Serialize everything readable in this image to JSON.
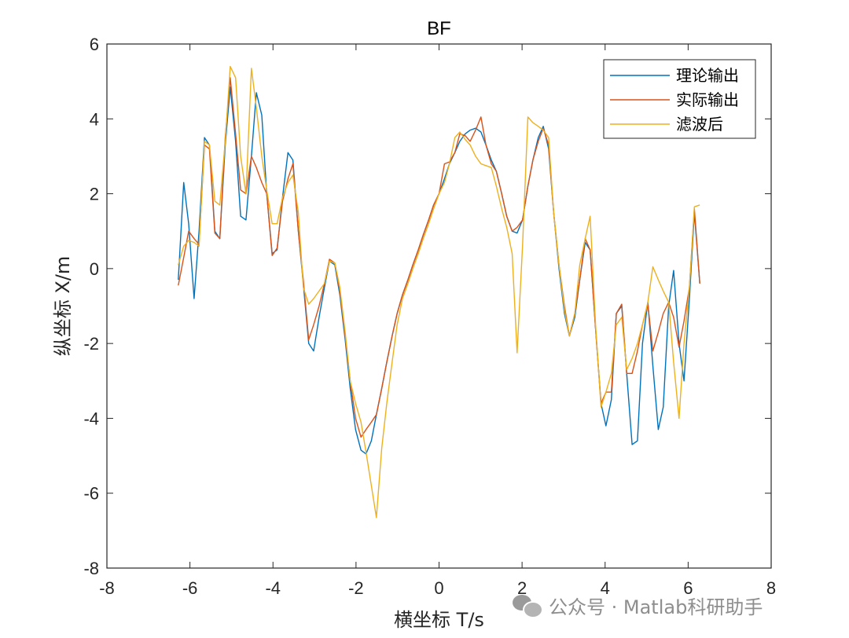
{
  "chart_data": {
    "type": "line",
    "title": "BF",
    "xlabel": "横坐标 T/s",
    "ylabel": "纵坐标 X/m",
    "xlim": [
      -8,
      8
    ],
    "ylim": [
      -8,
      6
    ],
    "xticks": [
      -8,
      -6,
      -4,
      -2,
      0,
      2,
      4,
      6,
      8
    ],
    "yticks": [
      -8,
      -6,
      -4,
      -2,
      0,
      2,
      4,
      6
    ],
    "grid": false,
    "legend_position": "top-right",
    "series": [
      {
        "name": "理论输出",
        "color": "#0072BD",
        "x": [
          -6.28,
          -6.15,
          -6.03,
          -5.9,
          -5.78,
          -5.65,
          -5.53,
          -5.4,
          -5.28,
          -5.15,
          -5.03,
          -4.9,
          -4.78,
          -4.65,
          -4.52,
          -4.4,
          -4.27,
          -4.15,
          -4.02,
          -3.9,
          -3.77,
          -3.64,
          -3.52,
          -3.39,
          -3.27,
          -3.14,
          -3.02,
          -2.89,
          -2.76,
          -2.64,
          -2.51,
          -2.39,
          -2.26,
          -2.14,
          -2.01,
          -1.88,
          -1.76,
          -1.63,
          -1.51,
          -1.38,
          -1.26,
          -1.13,
          -1.01,
          -0.88,
          -0.75,
          -0.63,
          -0.5,
          -0.38,
          -0.25,
          -0.13,
          0.0,
          0.13,
          0.25,
          0.38,
          0.5,
          0.63,
          0.75,
          0.88,
          1.01,
          1.13,
          1.26,
          1.38,
          1.51,
          1.63,
          1.76,
          1.88,
          2.01,
          2.14,
          2.26,
          2.39,
          2.51,
          2.64,
          2.76,
          2.89,
          3.02,
          3.14,
          3.27,
          3.39,
          3.52,
          3.64,
          3.77,
          3.9,
          4.02,
          4.15,
          4.27,
          4.4,
          4.52,
          4.65,
          4.78,
          4.9,
          5.03,
          5.15,
          5.28,
          5.4,
          5.53,
          5.65,
          5.78,
          5.9,
          6.03,
          6.15,
          6.28
        ],
        "y": [
          -0.3,
          2.3,
          1.2,
          -0.8,
          1.0,
          3.5,
          3.3,
          1.0,
          0.8,
          3.3,
          4.85,
          3.4,
          1.4,
          1.3,
          3.0,
          4.7,
          4.1,
          2.0,
          0.4,
          0.5,
          1.9,
          3.1,
          2.9,
          1.0,
          -0.4,
          -2.0,
          -2.2,
          -1.3,
          -0.5,
          0.2,
          0.1,
          -0.7,
          -1.9,
          -3.2,
          -4.3,
          -4.85,
          -4.95,
          -4.6,
          -3.9,
          -3.2,
          -2.5,
          -1.8,
          -1.2,
          -0.7,
          -0.3,
          0.1,
          0.5,
          0.9,
          1.3,
          1.7,
          2.0,
          2.4,
          2.8,
          3.1,
          3.4,
          3.6,
          3.7,
          3.75,
          3.65,
          3.3,
          2.9,
          2.6,
          2.0,
          1.4,
          1.0,
          0.95,
          1.3,
          2.2,
          2.9,
          3.5,
          3.8,
          3.2,
          1.5,
          0.0,
          -1.2,
          -1.8,
          -1.3,
          -0.3,
          0.7,
          0.5,
          -1.6,
          -3.6,
          -4.2,
          -3.5,
          -1.2,
          -1.0,
          -2.8,
          -4.7,
          -4.6,
          -2.0,
          -0.9,
          -2.6,
          -4.3,
          -3.7,
          -1.0,
          -0.05,
          -2.0,
          -3.0,
          -0.8,
          1.5,
          -0.4
        ]
      },
      {
        "name": "实际输出",
        "color": "#D95319",
        "x": [
          -6.28,
          -6.15,
          -6.03,
          -5.9,
          -5.78,
          -5.65,
          -5.53,
          -5.4,
          -5.28,
          -5.15,
          -5.03,
          -4.9,
          -4.78,
          -4.65,
          -4.52,
          -4.4,
          -4.27,
          -4.15,
          -4.02,
          -3.9,
          -3.77,
          -3.64,
          -3.52,
          -3.39,
          -3.27,
          -3.14,
          -3.02,
          -2.89,
          -2.76,
          -2.64,
          -2.51,
          -2.39,
          -2.26,
          -2.14,
          -2.01,
          -1.88,
          -1.76,
          -1.63,
          -1.51,
          -1.38,
          -1.26,
          -1.13,
          -1.01,
          -0.88,
          -0.75,
          -0.63,
          -0.5,
          -0.38,
          -0.25,
          -0.13,
          0.0,
          0.13,
          0.25,
          0.38,
          0.5,
          0.63,
          0.75,
          0.88,
          1.01,
          1.13,
          1.26,
          1.38,
          1.51,
          1.63,
          1.76,
          1.88,
          2.01,
          2.14,
          2.26,
          2.39,
          2.51,
          2.64,
          2.76,
          2.89,
          3.02,
          3.14,
          3.27,
          3.39,
          3.52,
          3.64,
          3.77,
          3.9,
          4.02,
          4.15,
          4.27,
          4.4,
          4.52,
          4.65,
          4.78,
          4.9,
          5.03,
          5.15,
          5.28,
          5.4,
          5.53,
          5.65,
          5.78,
          5.9,
          6.03,
          6.15,
          6.28
        ],
        "y": [
          -0.45,
          0.3,
          1.0,
          0.8,
          0.65,
          3.3,
          3.2,
          0.95,
          0.8,
          3.5,
          5.1,
          3.6,
          2.1,
          2.0,
          3.0,
          2.7,
          2.3,
          2.0,
          0.35,
          0.55,
          1.8,
          2.4,
          2.8,
          1.0,
          -0.3,
          -1.9,
          -1.5,
          -1.0,
          -0.4,
          0.25,
          0.15,
          -0.6,
          -1.8,
          -3.0,
          -4.0,
          -4.5,
          -4.3,
          -4.1,
          -3.9,
          -3.2,
          -2.5,
          -1.8,
          -1.2,
          -0.7,
          -0.3,
          0.1,
          0.5,
          0.9,
          1.3,
          1.7,
          2.0,
          2.8,
          2.85,
          3.1,
          3.6,
          3.55,
          3.4,
          3.7,
          4.05,
          3.3,
          2.8,
          2.6,
          2.0,
          1.4,
          1.0,
          1.1,
          1.3,
          2.2,
          2.9,
          3.4,
          3.75,
          3.3,
          1.5,
          0.1,
          -1.0,
          -1.8,
          -1.2,
          -0.3,
          0.8,
          0.5,
          -1.6,
          -3.6,
          -3.3,
          -3.3,
          -1.2,
          -0.95,
          -2.8,
          -2.8,
          -2.2,
          -1.5,
          -0.95,
          -2.2,
          -1.7,
          -1.2,
          -0.9,
          -1.3,
          -2.1,
          -1.4,
          -0.5,
          1.6,
          -0.4
        ]
      },
      {
        "name": "滤波后",
        "color": "#EDB120",
        "x": [
          -6.28,
          -6.15,
          -6.03,
          -5.9,
          -5.78,
          -5.65,
          -5.53,
          -5.4,
          -5.28,
          -5.15,
          -5.03,
          -4.9,
          -4.78,
          -4.65,
          -4.52,
          -4.4,
          -4.27,
          -4.15,
          -4.02,
          -3.9,
          -3.77,
          -3.64,
          -3.52,
          -3.39,
          -3.27,
          -3.14,
          -3.02,
          -2.89,
          -2.76,
          -2.64,
          -2.51,
          -2.39,
          -2.26,
          -2.14,
          -2.01,
          -1.88,
          -1.76,
          -1.63,
          -1.51,
          -1.38,
          -1.26,
          -1.13,
          -1.01,
          -0.88,
          -0.75,
          -0.63,
          -0.5,
          -0.38,
          -0.25,
          -0.13,
          0.0,
          0.13,
          0.25,
          0.38,
          0.5,
          0.63,
          0.75,
          0.88,
          1.01,
          1.13,
          1.26,
          1.38,
          1.51,
          1.63,
          1.76,
          1.88,
          2.01,
          2.14,
          2.26,
          2.39,
          2.51,
          2.64,
          2.76,
          2.89,
          3.02,
          3.14,
          3.27,
          3.39,
          3.52,
          3.64,
          3.77,
          3.9,
          4.02,
          4.15,
          4.27,
          4.4,
          4.52,
          4.65,
          4.78,
          4.9,
          5.03,
          5.15,
          5.28,
          5.4,
          5.53,
          5.65,
          5.78,
          5.9,
          6.03,
          6.15,
          6.28
        ],
        "y": [
          0.1,
          0.6,
          0.75,
          0.7,
          0.6,
          3.4,
          3.3,
          1.8,
          1.7,
          3.4,
          5.4,
          5.1,
          3.0,
          2.0,
          5.35,
          4.3,
          3.0,
          2.1,
          1.2,
          1.2,
          1.9,
          2.3,
          2.5,
          1.5,
          -0.5,
          -0.95,
          -0.8,
          -0.6,
          -0.4,
          0.2,
          0.15,
          -0.5,
          -1.7,
          -3.0,
          -3.6,
          -4.1,
          -4.9,
          -5.8,
          -6.65,
          -4.8,
          -3.6,
          -2.5,
          -1.5,
          -0.8,
          -0.4,
          0.0,
          0.4,
          0.8,
          1.2,
          1.6,
          2.0,
          2.3,
          2.8,
          3.5,
          3.65,
          3.45,
          3.3,
          3.0,
          2.8,
          2.75,
          2.7,
          2.2,
          1.6,
          1.1,
          0.4,
          -2.25,
          0.6,
          4.05,
          3.9,
          3.8,
          3.7,
          3.5,
          1.5,
          0.1,
          -1.1,
          -1.8,
          -1.2,
          0.1,
          0.8,
          1.4,
          -1.5,
          -3.7,
          -3.3,
          -2.8,
          -1.5,
          -1.3,
          -2.7,
          -2.4,
          -2.0,
          -1.5,
          -0.9,
          0.05,
          -0.3,
          -0.6,
          -0.9,
          -2.5,
          -4.0,
          -2.0,
          -0.5,
          1.65,
          1.7
        ]
      }
    ]
  }
}
